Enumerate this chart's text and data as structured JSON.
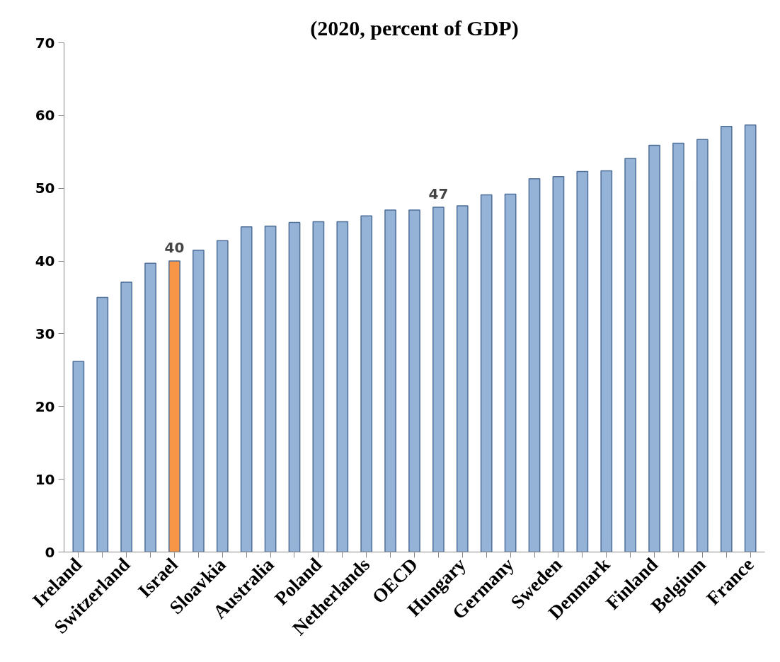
{
  "chart_data": {
    "type": "bar",
    "title": "(2020, percent of GDP)",
    "categories": [
      "Ireland",
      null,
      "Switzerland",
      null,
      "Israel",
      null,
      "Sloavkia",
      null,
      "Australia",
      null,
      "Poland",
      null,
      "Netherlands",
      null,
      "OECD",
      null,
      "Hungary",
      null,
      "Germany",
      null,
      "Sweden",
      null,
      "Denmark",
      null,
      "Finland",
      null,
      "Belgium",
      null,
      "France"
    ],
    "values": [
      26.2,
      35.0,
      37.1,
      39.7,
      40.0,
      41.5,
      42.8,
      44.7,
      44.8,
      45.3,
      45.4,
      45.4,
      46.2,
      47.0,
      47.0,
      47.4,
      47.6,
      49.1,
      49.2,
      51.3,
      51.6,
      52.3,
      52.4,
      54.1,
      55.9,
      56.2,
      56.7,
      58.5,
      58.7
    ],
    "colors": [
      "#95b3d7",
      "#95b3d7",
      "#95b3d7",
      "#95b3d7",
      "#f79646",
      "#95b3d7",
      "#95b3d7",
      "#95b3d7",
      "#95b3d7",
      "#95b3d7",
      "#95b3d7",
      "#95b3d7",
      "#95b3d7",
      "#95b3d7",
      "#95b3d7",
      "#95b3d7",
      "#95b3d7",
      "#95b3d7",
      "#95b3d7",
      "#95b3d7",
      "#95b3d7",
      "#95b3d7",
      "#95b3d7",
      "#95b3d7",
      "#95b3d7",
      "#95b3d7",
      "#95b3d7",
      "#95b3d7",
      "#95b3d7"
    ],
    "value_labels": [
      null,
      null,
      null,
      null,
      "40",
      null,
      null,
      null,
      null,
      null,
      null,
      null,
      null,
      null,
      null,
      "47",
      null,
      null,
      null,
      null,
      null,
      null,
      null,
      null,
      null,
      null,
      null,
      null,
      null
    ],
    "ylim": [
      0,
      70
    ],
    "yticks": [
      0,
      10,
      20,
      30,
      40,
      50,
      60,
      70
    ],
    "grid": false
  }
}
